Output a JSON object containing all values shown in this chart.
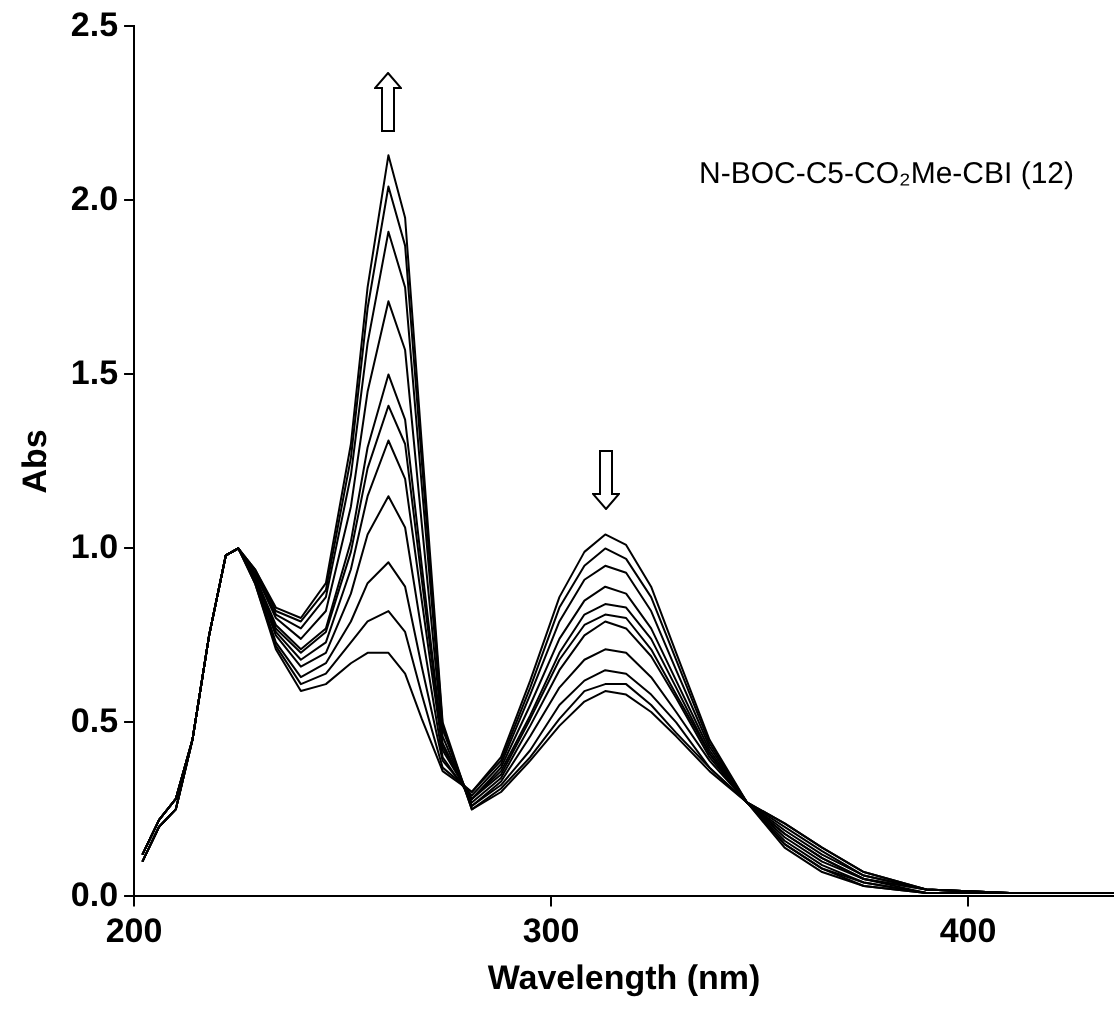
{
  "chart_data": {
    "type": "line",
    "xlabel": "Wavelength (nm)",
    "ylabel": "Abs",
    "annotations": [
      "N-BOC-C5-CO₂Me-CBI (12)"
    ],
    "xlim": [
      200,
      435
    ],
    "xticks": [
      200,
      300,
      400
    ],
    "ylim": [
      0,
      2.5
    ],
    "yticks": [
      {
        "value": 0,
        "label": "0.0"
      },
      {
        "value": 0.5,
        "label": "0.5"
      },
      {
        "value": 1,
        "label": "1.0"
      },
      {
        "value": 1.5,
        "label": "1.5"
      },
      {
        "value": 2,
        "label": "2.0"
      },
      {
        "value": 2.5,
        "label": "2.5"
      }
    ],
    "grid": false,
    "legend": false,
    "marker": "none",
    "line_style": "solid",
    "x": [
      202,
      206,
      210,
      214,
      218,
      222,
      225,
      229,
      234,
      240,
      246,
      252,
      256,
      261,
      265,
      269,
      274,
      281,
      288,
      295,
      302,
      308,
      313,
      318,
      324,
      330,
      338,
      347,
      356,
      365,
      375,
      390,
      410,
      435
    ],
    "series": [
      {
        "color": "#000000",
        "values": [
          0.1,
          0.2,
          0.25,
          0.45,
          0.75,
          0.98,
          1.0,
          0.9,
          0.71,
          0.59,
          0.61,
          0.67,
          0.7,
          0.7,
          0.64,
          0.51,
          0.36,
          0.3,
          0.4,
          0.62,
          0.86,
          0.99,
          1.04,
          1.01,
          0.89,
          0.7,
          0.45,
          0.27,
          0.14,
          0.07,
          0.03,
          0.01,
          0.01,
          0.01
        ]
      },
      {
        "color": "#000000",
        "values": [
          0.1,
          0.2,
          0.25,
          0.45,
          0.75,
          0.98,
          1.0,
          0.9,
          0.72,
          0.61,
          0.64,
          0.73,
          0.79,
          0.82,
          0.76,
          0.58,
          0.37,
          0.3,
          0.39,
          0.6,
          0.83,
          0.95,
          1.0,
          0.97,
          0.86,
          0.68,
          0.44,
          0.27,
          0.15,
          0.08,
          0.03,
          0.01,
          0.01,
          0.01
        ]
      },
      {
        "color": "#000000",
        "values": [
          0.1,
          0.2,
          0.25,
          0.45,
          0.75,
          0.98,
          1.0,
          0.91,
          0.73,
          0.63,
          0.67,
          0.79,
          0.9,
          0.96,
          0.89,
          0.66,
          0.39,
          0.29,
          0.38,
          0.58,
          0.79,
          0.91,
          0.95,
          0.93,
          0.82,
          0.65,
          0.43,
          0.27,
          0.15,
          0.08,
          0.04,
          0.01,
          0.01,
          0.01
        ]
      },
      {
        "color": "#000000",
        "values": [
          0.1,
          0.2,
          0.25,
          0.45,
          0.75,
          0.98,
          1.0,
          0.91,
          0.75,
          0.66,
          0.7,
          0.87,
          1.04,
          1.15,
          1.06,
          0.76,
          0.4,
          0.28,
          0.37,
          0.55,
          0.74,
          0.85,
          0.89,
          0.87,
          0.77,
          0.62,
          0.42,
          0.27,
          0.16,
          0.09,
          0.04,
          0.01,
          0.01,
          0.01
        ]
      },
      {
        "color": "#000000",
        "values": [
          0.1,
          0.2,
          0.25,
          0.45,
          0.75,
          0.98,
          1.0,
          0.92,
          0.76,
          0.68,
          0.73,
          0.94,
          1.15,
          1.31,
          1.2,
          0.85,
          0.42,
          0.28,
          0.36,
          0.52,
          0.7,
          0.81,
          0.84,
          0.83,
          0.74,
          0.6,
          0.41,
          0.27,
          0.17,
          0.1,
          0.05,
          0.01,
          0.01,
          0.01
        ]
      },
      {
        "color": "#000000",
        "values": [
          0.12,
          0.22,
          0.28,
          0.45,
          0.75,
          0.98,
          1.0,
          0.92,
          0.77,
          0.7,
          0.76,
          0.99,
          1.23,
          1.41,
          1.3,
          0.91,
          0.43,
          0.28,
          0.35,
          0.51,
          0.68,
          0.78,
          0.81,
          0.8,
          0.71,
          0.58,
          0.41,
          0.27,
          0.18,
          0.11,
          0.05,
          0.02,
          0.01,
          0.01
        ]
      },
      {
        "color": "#000000",
        "values": [
          0.12,
          0.22,
          0.28,
          0.45,
          0.75,
          0.98,
          1.0,
          0.92,
          0.78,
          0.71,
          0.77,
          1.02,
          1.29,
          1.5,
          1.37,
          0.95,
          0.44,
          0.27,
          0.34,
          0.49,
          0.65,
          0.75,
          0.79,
          0.77,
          0.69,
          0.57,
          0.4,
          0.27,
          0.18,
          0.11,
          0.05,
          0.02,
          0.01,
          0.01
        ]
      },
      {
        "color": "#000000",
        "values": [
          0.12,
          0.22,
          0.28,
          0.45,
          0.75,
          0.98,
          1.0,
          0.93,
          0.8,
          0.74,
          0.82,
          1.12,
          1.45,
          1.71,
          1.57,
          1.07,
          0.46,
          0.26,
          0.33,
          0.46,
          0.6,
          0.68,
          0.71,
          0.7,
          0.63,
          0.53,
          0.39,
          0.27,
          0.19,
          0.12,
          0.06,
          0.02,
          0.01,
          0.01
        ]
      },
      {
        "color": "#000000",
        "values": [
          0.12,
          0.22,
          0.28,
          0.45,
          0.75,
          0.98,
          1.0,
          0.93,
          0.81,
          0.77,
          0.86,
          1.21,
          1.59,
          1.91,
          1.75,
          1.18,
          0.48,
          0.26,
          0.32,
          0.42,
          0.55,
          0.62,
          0.65,
          0.64,
          0.58,
          0.5,
          0.37,
          0.27,
          0.2,
          0.13,
          0.06,
          0.02,
          0.01,
          0.01
        ]
      },
      {
        "color": "#000000",
        "values": [
          0.12,
          0.22,
          0.28,
          0.45,
          0.75,
          0.98,
          1.0,
          0.94,
          0.82,
          0.79,
          0.88,
          1.26,
          1.69,
          2.04,
          1.87,
          1.25,
          0.49,
          0.25,
          0.31,
          0.4,
          0.51,
          0.59,
          0.61,
          0.61,
          0.55,
          0.47,
          0.37,
          0.27,
          0.21,
          0.14,
          0.07,
          0.02,
          0.01,
          0.01
        ]
      },
      {
        "color": "#000000",
        "values": [
          0.12,
          0.22,
          0.28,
          0.45,
          0.75,
          0.98,
          1.0,
          0.94,
          0.83,
          0.8,
          0.9,
          1.3,
          1.75,
          2.13,
          1.95,
          1.3,
          0.5,
          0.25,
          0.3,
          0.39,
          0.49,
          0.56,
          0.59,
          0.58,
          0.53,
          0.46,
          0.36,
          0.27,
          0.21,
          0.14,
          0.07,
          0.02,
          0.01,
          0.01
        ]
      }
    ]
  }
}
